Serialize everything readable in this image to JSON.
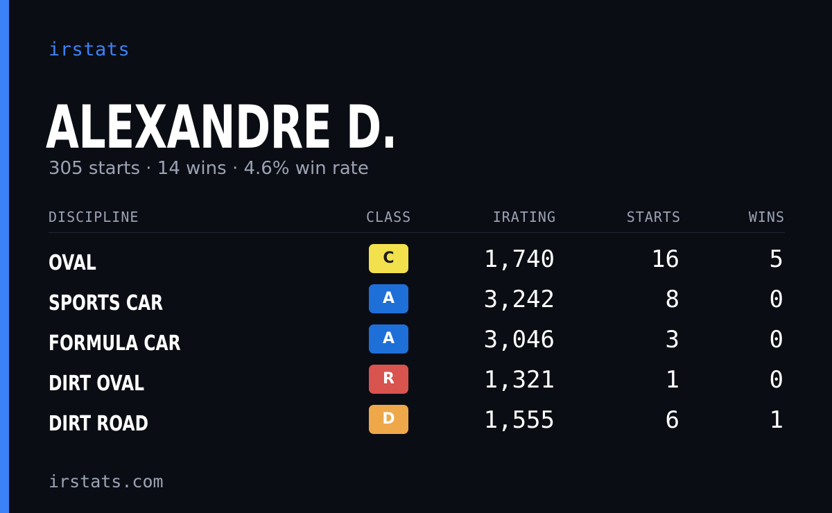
{
  "brand": "irstats",
  "driver": {
    "name": "ALEXANDRE D.",
    "starts": "305 starts",
    "wins": "14 wins",
    "win_rate": "4.6% win rate",
    "separator": "·"
  },
  "table": {
    "headers": {
      "discipline": "DISCIPLINE",
      "class": "CLASS",
      "irating": "IRATING",
      "starts": "STARTS",
      "wins": "WINS"
    },
    "rows": [
      {
        "discipline": "OVAL",
        "class": "C",
        "class_color": "#f2e14c",
        "class_text_color": "#1a1a1a",
        "irating": "1,740",
        "starts": "16",
        "wins": "5"
      },
      {
        "discipline": "SPORTS CAR",
        "class": "A",
        "class_color": "#1f6fd8",
        "class_text_color": "#ffffff",
        "irating": "3,242",
        "starts": "8",
        "wins": "0"
      },
      {
        "discipline": "FORMULA CAR",
        "class": "A",
        "class_color": "#1f6fd8",
        "class_text_color": "#ffffff",
        "irating": "3,046",
        "starts": "3",
        "wins": "0"
      },
      {
        "discipline": "DIRT OVAL",
        "class": "R",
        "class_color": "#d9534f",
        "class_text_color": "#ffffff",
        "irating": "1,321",
        "starts": "1",
        "wins": "0"
      },
      {
        "discipline": "DIRT ROAD",
        "class": "D",
        "class_color": "#eea84a",
        "class_text_color": "#ffffff",
        "irating": "1,555",
        "starts": "6",
        "wins": "1"
      }
    ]
  },
  "footer": {
    "url": "irstats.com"
  },
  "colors": {
    "accent": "#3b82f6",
    "background": "#0b0d14",
    "muted_text": "#9ba3b4"
  }
}
